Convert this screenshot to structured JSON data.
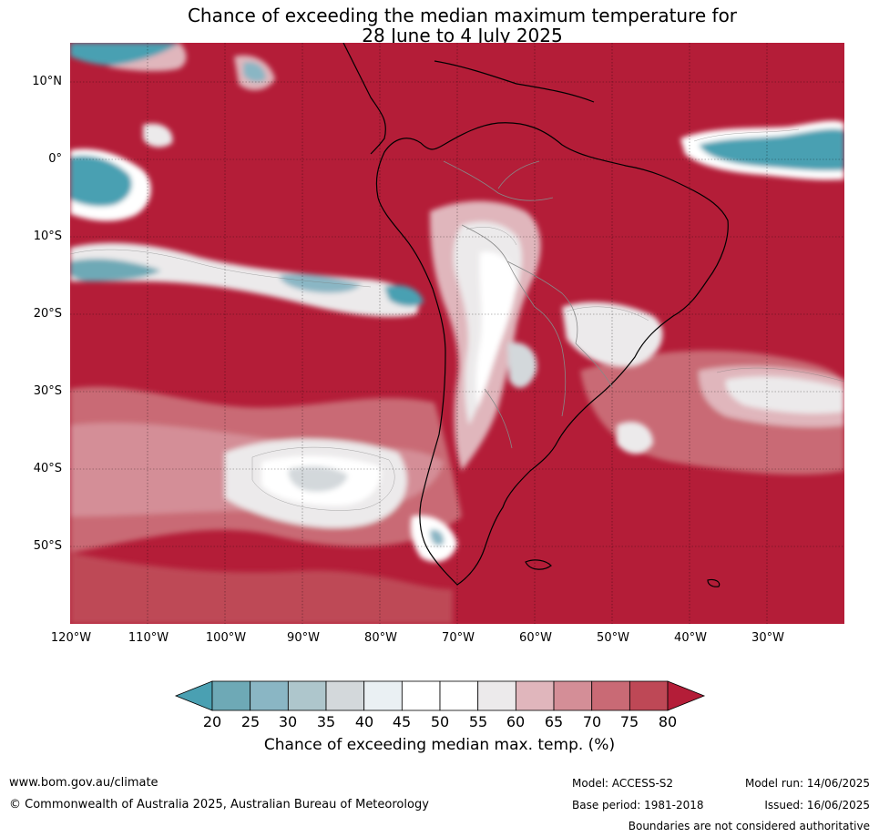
{
  "title_line1": "Chance of exceeding the median maximum temperature for",
  "title_line2": "28 June to 4 July 2025",
  "latitude_labels": [
    "10°N",
    "0°",
    "10°S",
    "20°S",
    "30°S",
    "40°S",
    "50°S"
  ],
  "longitude_labels": [
    "120°W",
    "110°W",
    "100°W",
    "90°W",
    "80°W",
    "70°W",
    "60°W",
    "50°W",
    "40°W",
    "30°W"
  ],
  "colorbar": {
    "ticks": [
      "20",
      "25",
      "30",
      "35",
      "40",
      "45",
      "50",
      "55",
      "60",
      "65",
      "70",
      "75",
      "80"
    ],
    "colors": [
      "#4aa0b2",
      "#6ea9b6",
      "#8ab6c4",
      "#aec6cc",
      "#d3d8db",
      "#eaf0f3",
      "#ffffff",
      "#ffffff",
      "#eceaeb",
      "#e0b6bc",
      "#d48e97",
      "#c96a75",
      "#be4856",
      "#b41d38"
    ],
    "title": "Chance of exceeding median max. temp. (%)"
  },
  "map_colors": {
    "ocean_hot": "#b41d38",
    "cool": "#4aa0b2",
    "neutral": "#ffffff"
  },
  "footer": {
    "url": "www.bom.gov.au/climate",
    "copyright": "© Commonwealth of Australia 2025, Australian Bureau of Meteorology",
    "model": "Model: ACCESS-S2",
    "base_period": "Base period: 1981-2018",
    "model_run": "Model run: 14/06/2025",
    "issued": "Issued: 16/06/2025",
    "boundaries": "Boundaries are not considered authoritative"
  }
}
